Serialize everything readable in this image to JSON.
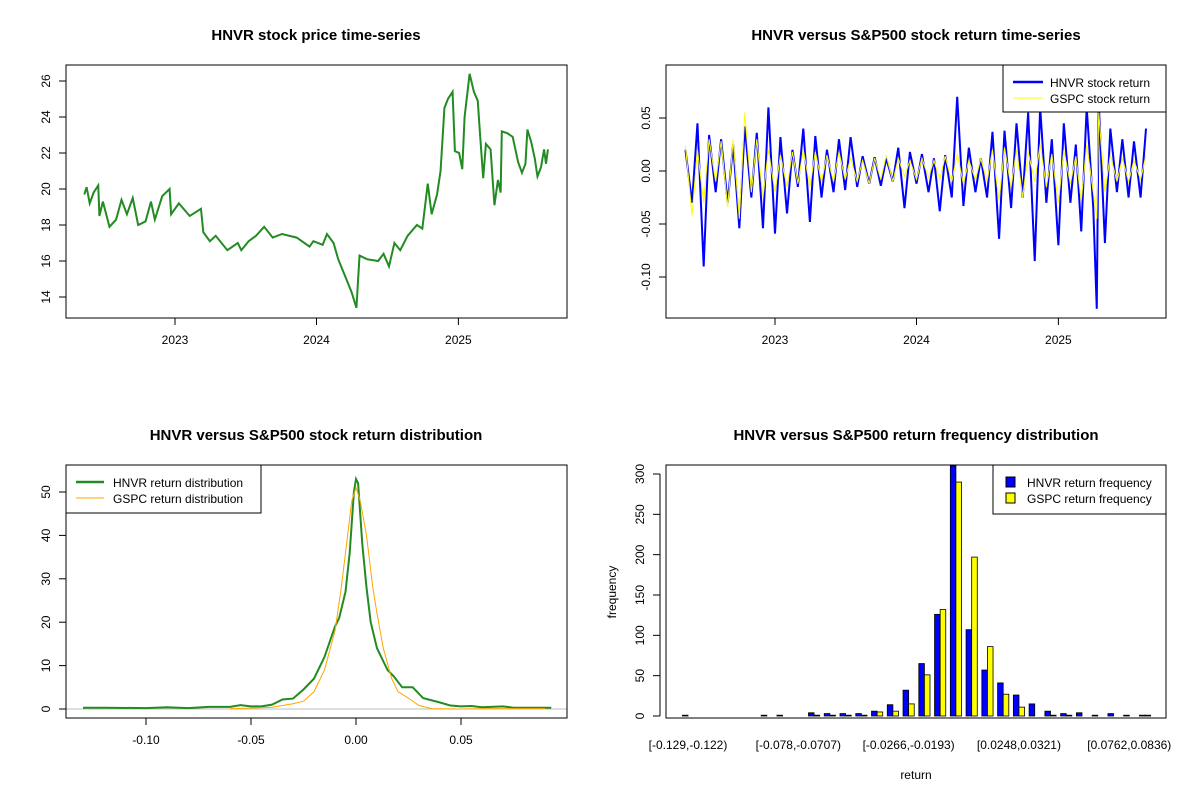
{
  "chart_data": [
    {
      "type": "line",
      "title": "HNVR stock price time-series",
      "xlabel": "",
      "ylabel": "",
      "x_ticks": [
        "2023",
        "2024",
        "2025"
      ],
      "y_ticks": [
        "14",
        "16",
        "18",
        "20",
        "22",
        "24",
        "26"
      ],
      "ylim": [
        12.8,
        26.9
      ],
      "grid": false,
      "color": "#228B22",
      "series": [
        {
          "points": [
            [
              "2022-05-12",
              19.7
            ],
            [
              "2022-05-18",
              20.1
            ],
            [
              "2022-05-26",
              19.2
            ],
            [
              "2022-06-05",
              19.8
            ],
            [
              "2022-06-17",
              20.2
            ],
            [
              "2022-06-20",
              18.5
            ],
            [
              "2022-06-29",
              19.3
            ],
            [
              "2022-07-16",
              17.9
            ],
            [
              "2022-08-02",
              18.3
            ],
            [
              "2022-08-16",
              19.4
            ],
            [
              "2022-08-30",
              18.6
            ],
            [
              "2022-09-14",
              19.5
            ],
            [
              "2022-09-28",
              18.0
            ],
            [
              "2022-10-17",
              18.2
            ],
            [
              "2022-10-31",
              19.3
            ],
            [
              "2022-11-10",
              18.3
            ],
            [
              "2022-11-29",
              19.6
            ],
            [
              "2022-12-18",
              20.0
            ],
            [
              "2022-12-22",
              18.6
            ],
            [
              "2023-01-11",
              19.2
            ],
            [
              "2023-02-08",
              18.5
            ],
            [
              "2023-03-09",
              18.9
            ],
            [
              "2023-03-15",
              17.6
            ],
            [
              "2023-04-01",
              17.1
            ],
            [
              "2023-04-16",
              17.4
            ],
            [
              "2023-05-16",
              16.6
            ],
            [
              "2023-06-12",
              17.0
            ],
            [
              "2023-06-21",
              16.6
            ],
            [
              "2023-07-10",
              17.1
            ],
            [
              "2023-07-29",
              17.4
            ],
            [
              "2023-08-19",
              17.9
            ],
            [
              "2023-09-10",
              17.3
            ],
            [
              "2023-10-04",
              17.5
            ],
            [
              "2023-11-11",
              17.3
            ],
            [
              "2023-12-14",
              16.8
            ],
            [
              "2023-12-24",
              17.1
            ],
            [
              "2024-01-17",
              16.9
            ],
            [
              "2024-01-28",
              17.5
            ],
            [
              "2024-02-14",
              17.0
            ],
            [
              "2024-02-26",
              16.1
            ],
            [
              "2024-03-14",
              15.2
            ],
            [
              "2024-03-31",
              14.3
            ],
            [
              "2024-04-13",
              13.4
            ],
            [
              "2024-04-21",
              16.3
            ],
            [
              "2024-05-10",
              16.1
            ],
            [
              "2024-06-08",
              16.0
            ],
            [
              "2024-06-22",
              16.4
            ],
            [
              "2024-07-06",
              15.7
            ],
            [
              "2024-07-20",
              17.0
            ],
            [
              "2024-08-04",
              16.6
            ],
            [
              "2024-08-23",
              17.4
            ],
            [
              "2024-09-16",
              18.0
            ],
            [
              "2024-09-30",
              17.8
            ],
            [
              "2024-10-14",
              20.3
            ],
            [
              "2024-10-24",
              18.6
            ],
            [
              "2024-11-07",
              19.7
            ],
            [
              "2024-11-16",
              21.0
            ],
            [
              "2024-11-26",
              24.5
            ],
            [
              "2024-12-05",
              25.0
            ],
            [
              "2024-12-17",
              25.4
            ],
            [
              "2024-12-23",
              22.1
            ],
            [
              "2025-01-03",
              22.0
            ],
            [
              "2025-01-11",
              21.1
            ],
            [
              "2025-01-17",
              24.0
            ],
            [
              "2025-01-30",
              26.4
            ],
            [
              "2025-02-10",
              25.4
            ],
            [
              "2025-02-20",
              24.9
            ],
            [
              "2025-02-24",
              23.6
            ],
            [
              "2025-03-06",
              20.6
            ],
            [
              "2025-03-13",
              22.5
            ],
            [
              "2025-03-25",
              22.2
            ],
            [
              "2025-04-04",
              19.1
            ],
            [
              "2025-04-13",
              20.5
            ],
            [
              "2025-04-20",
              19.8
            ],
            [
              "2025-04-23",
              23.2
            ],
            [
              "2025-05-07",
              23.1
            ],
            [
              "2025-05-21",
              22.9
            ],
            [
              "2025-06-04",
              21.5
            ],
            [
              "2025-06-14",
              20.9
            ],
            [
              "2025-06-23",
              21.4
            ],
            [
              "2025-06-28",
              23.3
            ],
            [
              "2025-07-08",
              22.6
            ],
            [
              "2025-07-17",
              21.7
            ],
            [
              "2025-07-24",
              20.7
            ],
            [
              "2025-08-02",
              21.2
            ],
            [
              "2025-08-10",
              22.2
            ],
            [
              "2025-08-15",
              21.4
            ],
            [
              "2025-08-20",
              22.2
            ]
          ]
        }
      ]
    },
    {
      "type": "line",
      "title": "HNVR versus S&P500 stock return time-series",
      "xlabel": "",
      "ylabel": "",
      "x_ticks": [
        "2023",
        "2024",
        "2025"
      ],
      "y_ticks": [
        "-0.10",
        "-0.05",
        "0.00",
        "0.05"
      ],
      "ylim": [
        -0.139,
        0.1
      ],
      "grid": false,
      "legend_position": "top-right",
      "dates": [
        "2022-05-15",
        "2022-06-01",
        "2022-06-15",
        "2022-07-01",
        "2022-07-15",
        "2022-08-01",
        "2022-08-15",
        "2022-09-01",
        "2022-09-15",
        "2022-10-01",
        "2022-10-15",
        "2022-11-01",
        "2022-11-15",
        "2022-12-01",
        "2022-12-15",
        "2023-01-01",
        "2023-01-15",
        "2023-02-01",
        "2023-02-15",
        "2023-03-01",
        "2023-03-15",
        "2023-04-01",
        "2023-04-15",
        "2023-05-01",
        "2023-05-15",
        "2023-06-01",
        "2023-06-15",
        "2023-07-01",
        "2023-07-15",
        "2023-08-01",
        "2023-08-15",
        "2023-09-01",
        "2023-09-15",
        "2023-10-01",
        "2023-10-15",
        "2023-11-01",
        "2023-11-15",
        "2023-12-01",
        "2023-12-15",
        "2024-01-01",
        "2024-01-15",
        "2024-02-01",
        "2024-02-15",
        "2024-03-01",
        "2024-03-15",
        "2024-04-01",
        "2024-04-15",
        "2024-05-01",
        "2024-05-15",
        "2024-06-01",
        "2024-06-15",
        "2024-07-01",
        "2024-07-15",
        "2024-08-01",
        "2024-08-15",
        "2024-09-01",
        "2024-09-15",
        "2024-10-01",
        "2024-10-15",
        "2024-11-01",
        "2024-11-15",
        "2024-12-01",
        "2024-12-15",
        "2025-01-01",
        "2025-01-15",
        "2025-02-01",
        "2025-02-15",
        "2025-03-01",
        "2025-03-15",
        "2025-04-01",
        "2025-04-10",
        "2025-04-15",
        "2025-05-01",
        "2025-05-15",
        "2025-06-01",
        "2025-06-15",
        "2025-07-01",
        "2025-07-15",
        "2025-08-01",
        "2025-08-15"
      ],
      "series": [
        {
          "name": "HNVR stock return",
          "color": "#0000FF",
          "values": [
            0.02,
            -0.03,
            0.045,
            -0.09,
            0.034,
            -0.02,
            0.03,
            -0.03,
            0.025,
            -0.054,
            0.042,
            -0.025,
            0.036,
            -0.054,
            0.06,
            -0.059,
            0.032,
            -0.04,
            0.02,
            -0.015,
            0.04,
            -0.048,
            0.033,
            -0.025,
            0.02,
            -0.02,
            0.03,
            -0.018,
            0.032,
            -0.015,
            0.014,
            -0.012,
            0.013,
            -0.014,
            0.012,
            -0.01,
            0.022,
            -0.035,
            0.018,
            -0.012,
            0.016,
            -0.02,
            0.012,
            -0.038,
            0.015,
            -0.025,
            0.07,
            -0.033,
            0.022,
            -0.02,
            0.012,
            -0.025,
            0.037,
            -0.064,
            0.038,
            -0.035,
            0.045,
            -0.025,
            0.055,
            -0.085,
            0.06,
            -0.03,
            0.03,
            -0.07,
            0.045,
            -0.03,
            0.025,
            -0.057,
            0.06,
            -0.035,
            -0.13,
            0.065,
            -0.068,
            0.04,
            -0.02,
            0.03,
            -0.025,
            0.028,
            -0.025,
            0.04
          ]
        },
        {
          "name": "GSPC stock return",
          "color": "#FFFF00",
          "values": [
            0.024,
            -0.042,
            0.02,
            -0.03,
            0.03,
            -0.01,
            0.028,
            -0.034,
            0.03,
            -0.045,
            0.055,
            -0.02,
            0.03,
            -0.025,
            0.02,
            -0.02,
            0.015,
            -0.015,
            0.018,
            -0.012,
            0.02,
            -0.015,
            0.018,
            -0.01,
            0.015,
            -0.01,
            0.018,
            -0.008,
            0.012,
            -0.01,
            0.01,
            -0.012,
            0.012,
            -0.008,
            0.015,
            -0.01,
            0.012,
            -0.005,
            0.01,
            -0.008,
            0.012,
            -0.006,
            0.01,
            -0.008,
            0.014,
            -0.01,
            0.016,
            -0.012,
            0.01,
            -0.008,
            0.012,
            -0.01,
            0.02,
            -0.028,
            0.022,
            -0.015,
            0.02,
            -0.025,
            0.018,
            -0.01,
            0.025,
            -0.015,
            0.016,
            -0.03,
            0.02,
            -0.012,
            0.014,
            -0.028,
            0.025,
            -0.02,
            -0.045,
            0.055,
            -0.02,
            0.015,
            -0.01,
            0.012,
            -0.01,
            0.01,
            -0.008,
            0.015
          ]
        }
      ]
    },
    {
      "type": "line",
      "title": "HNVR versus S&P500 stock return distribution",
      "xlabel": "",
      "ylabel": "",
      "x_ticks": [
        "-0.10",
        "-0.05",
        "0.00",
        "0.05"
      ],
      "y_ticks": [
        "0",
        "10",
        "20",
        "30",
        "40",
        "50"
      ],
      "xlim": [
        -0.138,
        0.1
      ],
      "ylim": [
        -2,
        56
      ],
      "grid": false,
      "legend_position": "top-left",
      "baseline_color": "#BEBEBE",
      "series": [
        {
          "name": "HNVR return distribution",
          "color": "#228B22",
          "x": [
            -0.13,
            -0.12,
            -0.1,
            -0.09,
            -0.08,
            -0.07,
            -0.06,
            -0.055,
            -0.05,
            -0.045,
            -0.04,
            -0.035,
            -0.03,
            -0.025,
            -0.02,
            -0.015,
            -0.01,
            -0.008,
            -0.005,
            -0.003,
            -0.001,
            0,
            0.001,
            0.003,
            0.005,
            0.007,
            0.01,
            0.015,
            0.018,
            0.022,
            0.027,
            0.032,
            0.04,
            0.045,
            0.05,
            0.055,
            0.06,
            0.07,
            0.075,
            0.093
          ],
          "y": [
            0.3,
            0.3,
            0.2,
            0.4,
            0.2,
            0.5,
            0.5,
            0.9,
            0.6,
            0.6,
            1.0,
            2.2,
            2.4,
            4.5,
            7,
            12,
            19,
            21,
            27,
            36,
            50,
            53,
            52,
            38,
            28,
            20,
            14,
            9,
            7.5,
            5,
            5,
            2.5,
            1.5,
            0.8,
            0.6,
            0.7,
            0.4,
            0.6,
            0.3,
            0.3
          ]
        },
        {
          "name": "GSPC return distribution",
          "color": "#FFA500",
          "x": [
            -0.06,
            -0.05,
            -0.04,
            -0.03,
            -0.025,
            -0.02,
            -0.015,
            -0.01,
            -0.007,
            -0.004,
            -0.002,
            0,
            0.002,
            0.005,
            0.008,
            0.01,
            0.013,
            0.017,
            0.02,
            0.025,
            0.03,
            0.036,
            0.05,
            0.06,
            0.09
          ],
          "y": [
            0.1,
            0.2,
            0.4,
            1.2,
            1.8,
            4,
            9,
            18,
            28,
            40,
            48,
            51,
            48,
            40,
            28,
            22,
            14,
            7,
            4,
            2.5,
            0.8,
            0.1,
            0,
            0.1,
            0.1
          ]
        }
      ]
    },
    {
      "type": "bar",
      "title": "HNVR versus S&P500 return frequency distribution",
      "xlabel": "return",
      "ylabel": "frequency",
      "y_ticks": [
        "0",
        "50",
        "100",
        "150",
        "200",
        "250",
        "300"
      ],
      "ylim": [
        0,
        311
      ],
      "grid": false,
      "legend_position": "top-right",
      "shown_category_labels": [
        {
          "index": 0,
          "label": "[-0.129,-0.122)"
        },
        {
          "index": 7,
          "label": "[-0.078,-0.0707)"
        },
        {
          "index": 14,
          "label": "[-0.0266,-0.0193)"
        },
        {
          "index": 21,
          "label": "[0.0248,0.0321)"
        },
        {
          "index": 28,
          "label": "[0.0762,0.0836)"
        }
      ],
      "series": [
        {
          "name": "HNVR return frequency",
          "color": "#0000FF",
          "values": [
            1,
            0,
            0,
            0,
            0,
            1,
            1,
            0,
            4,
            3,
            3,
            3,
            6,
            14,
            32,
            65,
            126,
            310,
            107,
            57,
            41,
            26,
            15,
            6,
            3,
            4,
            1,
            3,
            1,
            1
          ]
        },
        {
          "name": "GSPC return frequency",
          "color": "#FFFF00",
          "values": [
            0,
            0,
            0,
            0,
            0,
            0,
            0,
            0,
            1,
            1,
            1,
            1,
            5,
            6,
            15,
            51,
            132,
            290,
            197,
            86,
            27,
            11,
            0,
            1,
            1,
            0,
            0,
            0,
            0,
            1
          ]
        }
      ]
    }
  ]
}
